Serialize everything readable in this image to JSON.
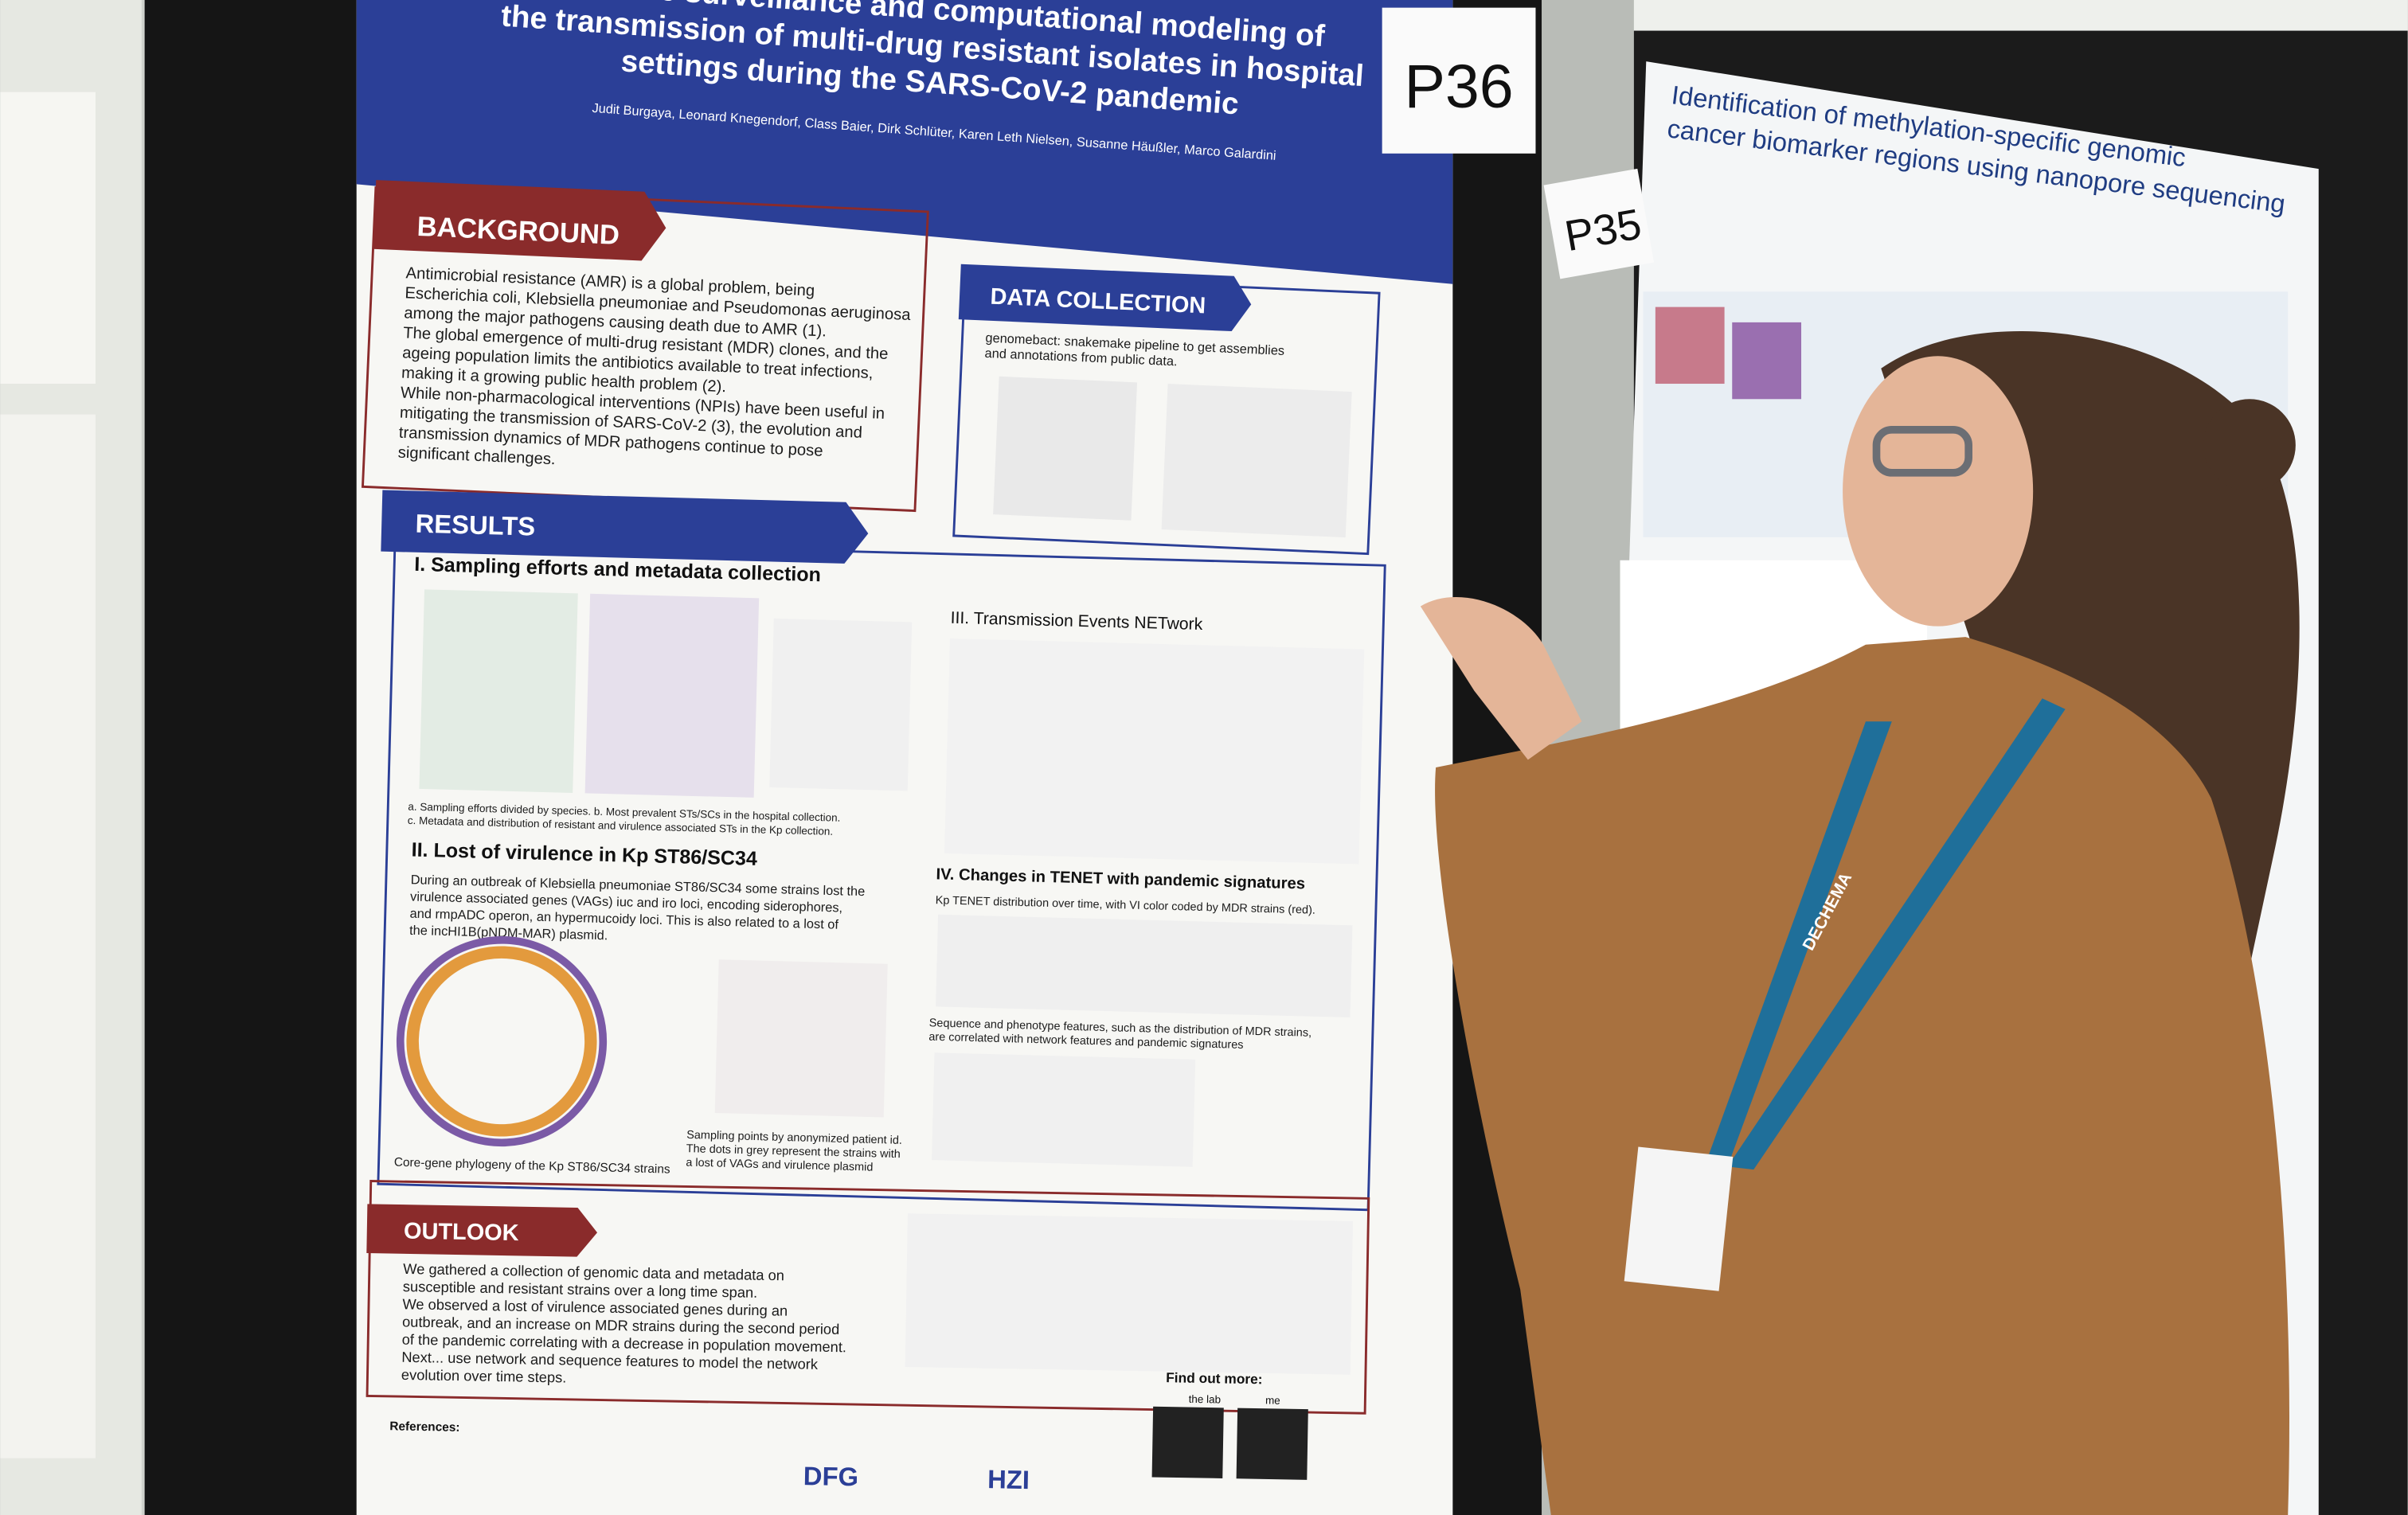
{
  "main_poster": {
    "label": "P36",
    "title": [
      "Genomic surveillance and computational modeling of",
      "the transmission of multi-drug resistant isolates in hospital",
      "settings during the SARS-CoV-2 pandemic"
    ],
    "authors": "Judit Burgaya, Leonard Knegendorf, Class Baier, Dirk Schlüter, Karen Leth Nielsen, Susanne Häußler, Marco Galardini",
    "background": {
      "heading": "BACKGROUND",
      "lines": [
        "Antimicrobial resistance (AMR) is a global problem, being",
        "Escherichia coli, Klebsiella pneumoniae and Pseudomonas aeruginosa",
        "among the major pathogens causing death due to AMR (1).",
        "The global emergence of multi-drug resistant (MDR) clones, and the",
        "ageing population limits the antibiotics available to treat infections,",
        "making it a growing public health problem (2).",
        "While non-pharmacological interventions (NPIs) have been useful in",
        "mitigating the transmission of SARS-CoV-2 (3), the evolution and",
        "transmission dynamics of MDR pathogens continue to pose",
        "significant challenges."
      ]
    },
    "data_collection": {
      "heading": "DATA COLLECTION",
      "lines": [
        "genomebact: snakemake pipeline to get assemblies",
        "and annotations from public data."
      ]
    },
    "results": {
      "heading": "RESULTS",
      "section_1": "I. Sampling efforts and metadata collection",
      "caption_1": [
        "a. Sampling efforts divided by species. b. Most prevalent STs/SCs in the hospital collection.",
        "c. Metadata and distribution of resistant and virulence associated STs in the Kp collection."
      ],
      "section_2": "II. Lost of virulence in Kp ST86/SC34",
      "text_2": [
        "During an outbreak of Klebsiella pneumoniae ST86/SC34 some strains lost the",
        "virulence associated genes (VAGs) iuc and iro loci, encoding siderophores,",
        "and rmpADC operon, an hypermucoidy loci. This is also related to a lost of",
        "the incHI1B(pNDM-MAR) plasmid."
      ],
      "caption_2a": "Core-gene phylogeny of the Kp ST86/SC34 strains",
      "caption_2b": [
        "Sampling points by anonymized patient id.",
        "The dots in grey represent the strains with",
        "a lost of VAGs and virulence plasmid"
      ],
      "section_3": "III. Transmission Events NETwork",
      "section_4": "IV. Changes in TENET with pandemic signatures",
      "caption_4a": "Kp TENET distribution over time, with VI color coded by MDR strains (red).",
      "caption_4b": [
        "Sequence and phenotype features, such as the distribution of MDR strains,",
        "are correlated with network features and pandemic signatures"
      ]
    },
    "outlook": {
      "heading": "OUTLOOK",
      "lines": [
        "We gathered a collection of genomic data and metadata on",
        "susceptible and resistant strains over a long time span.",
        "We observed a lost of virulence associated genes during an",
        "outbreak, and an increase on MDR strains during the second period",
        "of the pandemic correlating with a decrease in population movement.",
        "Next... use network and sequence features to model the network",
        "evolution over time steps."
      ]
    },
    "references_heading": "References:",
    "find_out_more": "Find out more:",
    "qr_labels": [
      "the lab",
      "me"
    ],
    "logos": [
      "DFG",
      "HZI"
    ]
  },
  "side_poster": {
    "label": "P35",
    "title": [
      "Identification of methylation-specific genomic",
      "cancer biomarker regions using nanopore sequencing"
    ]
  },
  "lanyard": "DECHEMA"
}
